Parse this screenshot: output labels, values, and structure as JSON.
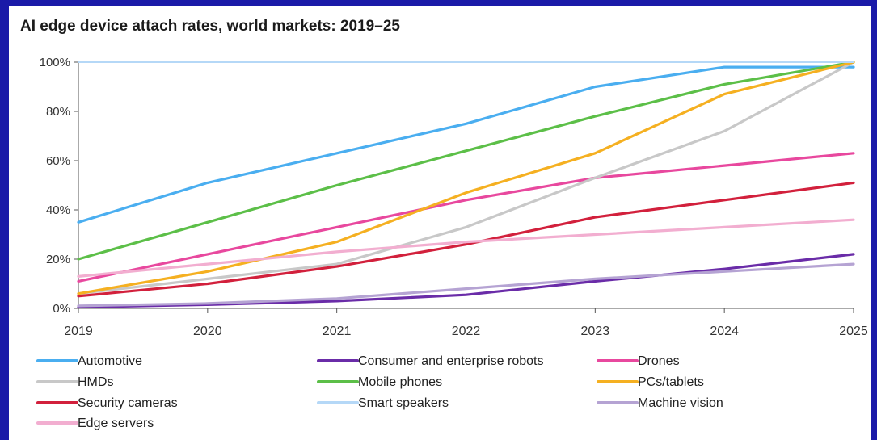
{
  "chart_data": {
    "type": "line",
    "title": "AI edge device attach rates, world markets: 2019–25",
    "xlabel": "",
    "ylabel": "",
    "x": [
      "2019",
      "2020",
      "2021",
      "2022",
      "2023",
      "2024",
      "2025"
    ],
    "ylim": [
      0,
      100
    ],
    "y_ticks": [
      "0%",
      "20%",
      "40%",
      "60%",
      "80%",
      "100%"
    ],
    "grid": false,
    "legend_position": "bottom",
    "series": [
      {
        "name": "Automotive",
        "color": "#4aaef0",
        "values": [
          35,
          51,
          63,
          75,
          90,
          98,
          98
        ]
      },
      {
        "name": "Consumer and enterprise robots",
        "color": "#6a2ca8",
        "values": [
          0.5,
          1.5,
          3,
          5.5,
          11,
          16,
          22
        ]
      },
      {
        "name": "Drones",
        "color": "#e8489e",
        "values": [
          11,
          22,
          33,
          44,
          53,
          58,
          63
        ]
      },
      {
        "name": "HMDs",
        "color": "#c8c8c8",
        "values": [
          6,
          12,
          18,
          33,
          53,
          72,
          100
        ]
      },
      {
        "name": "Mobile phones",
        "color": "#5cbf48",
        "values": [
          20,
          35,
          50,
          64,
          78,
          91,
          100
        ]
      },
      {
        "name": "PCs/tablets",
        "color": "#f5b021",
        "values": [
          6,
          15,
          27,
          47,
          63,
          87,
          100
        ]
      },
      {
        "name": "Security cameras",
        "color": "#d2203c",
        "values": [
          5,
          10,
          17,
          26,
          37,
          44,
          51
        ]
      },
      {
        "name": "Smart speakers",
        "color": "#b5d8f7",
        "values": [
          100,
          100,
          100,
          100,
          100,
          100,
          100
        ]
      },
      {
        "name": "Machine vision",
        "color": "#b5a3d3",
        "values": [
          1,
          2,
          4,
          8,
          12,
          15,
          18
        ]
      },
      {
        "name": "Edge servers",
        "color": "#f2aed0",
        "values": [
          13,
          18,
          23,
          27,
          30,
          33,
          36
        ]
      }
    ]
  }
}
